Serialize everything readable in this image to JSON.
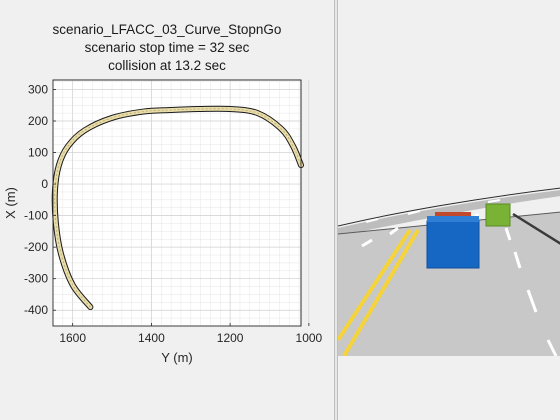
{
  "figure": {
    "title_lines": [
      "scenario_LFACC_03_Curve_StopnGo",
      "scenario stop time = 32 sec",
      "collision at 13.2 sec"
    ]
  },
  "chart_data": {
    "type": "line",
    "xlabel": "Y (m)",
    "ylabel": "X (m)",
    "x_direction": "reversed",
    "xlim": [
      1650,
      1020
    ],
    "ylim": [
      -450,
      330
    ],
    "x_ticks": [
      1600,
      1400,
      1200,
      1000
    ],
    "y_ticks": [
      300,
      200,
      100,
      0,
      -100,
      -200,
      -300,
      -400
    ],
    "grid": true,
    "series": [
      {
        "x": [
          1555,
          1600,
          1630,
          1643,
          1645,
          1635,
          1612,
          1570,
          1500,
          1420,
          1350,
          1280,
          1200,
          1130,
          1070,
          1040,
          1020
        ],
        "y": [
          -390,
          -320,
          -220,
          -120,
          -20,
          60,
          120,
          170,
          210,
          230,
          235,
          238,
          238,
          225,
          175,
          120,
          60
        ]
      }
    ]
  },
  "scene": {
    "road_color": "#c8c8c8",
    "lane_line_color": "#f5d33a",
    "ego_vehicle_color": "#1667c4",
    "lead_vehicle_color": "#c24a2c",
    "other_vehicle_color": "#7ab236"
  }
}
